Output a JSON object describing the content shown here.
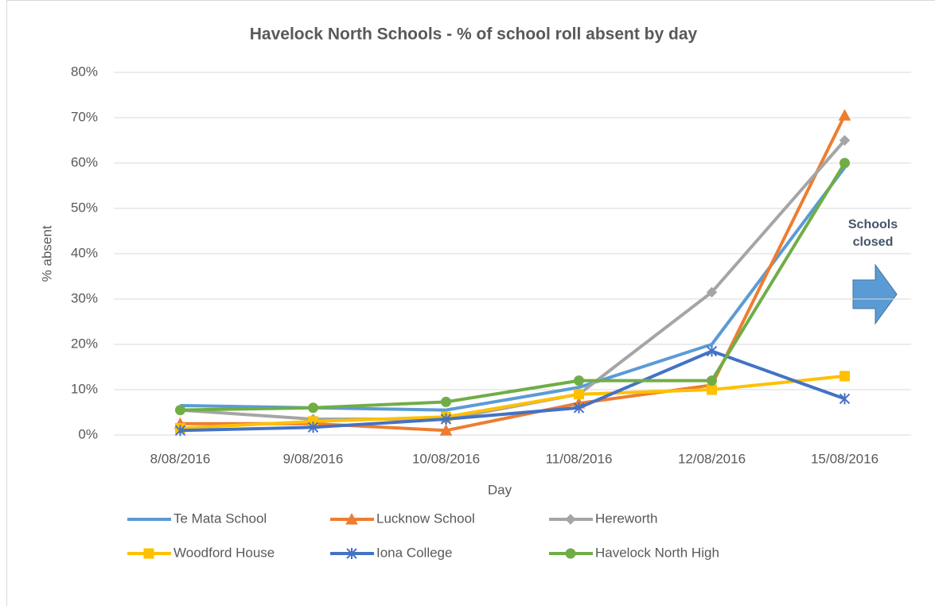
{
  "chart_data": {
    "type": "line",
    "title": "Havelock North Schools - % of school roll  absent by day",
    "x_label": "Day",
    "y_label": "% absent",
    "annotation": "Schools closed",
    "categories": [
      "8/08/2016",
      "9/08/2016",
      "10/08/2016",
      "11/08/2016",
      "12/08/2016",
      "15/08/2016"
    ],
    "series": [
      {
        "name": "Te Mata School",
        "color": "#5b9bd5",
        "marker": "none",
        "values": [
          6.5,
          6,
          5.5,
          10.5,
          20,
          59
        ]
      },
      {
        "name": "Lucknow School",
        "color": "#ed7d31",
        "marker": "triangle",
        "values": [
          2.5,
          2.5,
          1,
          7,
          11,
          70.5
        ]
      },
      {
        "name": "Hereworth",
        "color": "#a5a5a5",
        "marker": "diamond",
        "values": [
          5.5,
          3.5,
          3.5,
          9,
          31.5,
          65
        ]
      },
      {
        "name": "Woodford House",
        "color": "#ffc000",
        "marker": "square",
        "values": [
          1.5,
          3,
          4,
          9,
          10,
          13
        ]
      },
      {
        "name": "Iona College",
        "color": "#4472c4",
        "marker": "star",
        "values": [
          1,
          1.7,
          3.5,
          6,
          18.5,
          8
        ]
      },
      {
        "name": "Havelock North High",
        "color": "#70ad47",
        "marker": "circle",
        "values": [
          5.5,
          6,
          7.3,
          12,
          12,
          60
        ]
      }
    ],
    "ylim": [
      0,
      80
    ],
    "yticks": [
      {
        "value": 0,
        "label": "0%"
      },
      {
        "value": 10,
        "label": "10%"
      },
      {
        "value": 20,
        "label": "20%"
      },
      {
        "value": 30,
        "label": "30%"
      },
      {
        "value": 40,
        "label": "40%"
      },
      {
        "value": 50,
        "label": "50%"
      },
      {
        "value": 60,
        "label": "60%"
      },
      {
        "value": 70,
        "label": "70%"
      },
      {
        "value": 80,
        "label": "80%"
      }
    ],
    "grid": true,
    "legend": "bottom"
  }
}
